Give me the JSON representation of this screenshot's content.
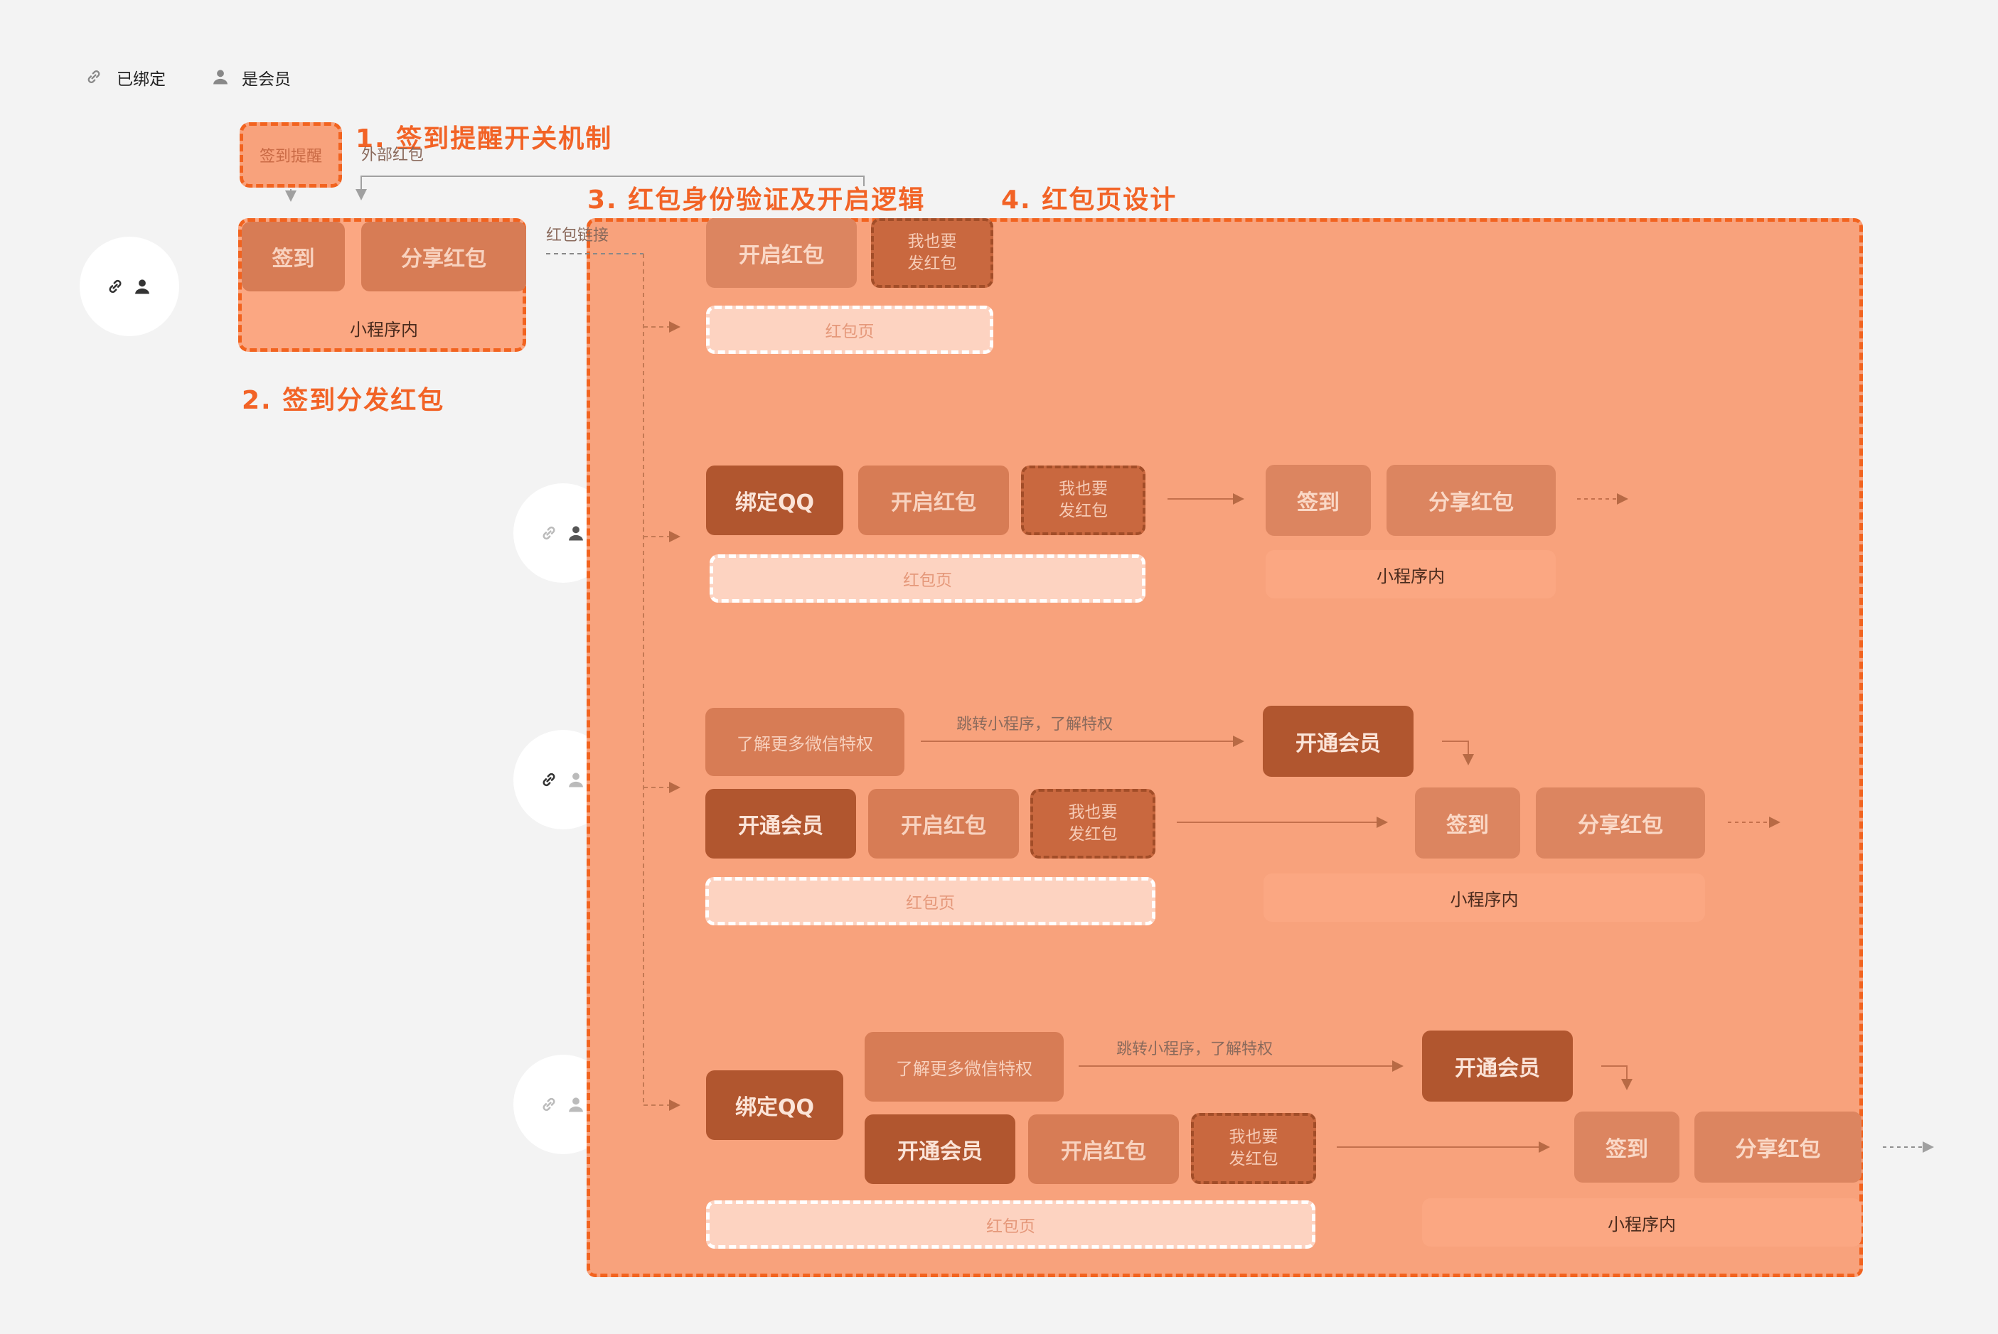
{
  "legend": {
    "bound": "已绑定",
    "member": "是会员"
  },
  "headings": {
    "h1": "1. 签到提醒开关机制",
    "h2": "2. 签到分发红包",
    "h3": "3. 红包身份验证及开启逻辑",
    "h4": "4. 红包页设计"
  },
  "captions": {
    "external": "外部红包",
    "link": "红包链接"
  },
  "checkin_reminder": "签到提醒",
  "miniapp": {
    "checkin": "签到",
    "share": "分享红包",
    "inside": "小程序内"
  },
  "redpack": {
    "open": "开启红包",
    "me_too_line1": "我也要",
    "me_too_line2": "发红包",
    "page": "红包页",
    "bind_qq": "绑定QQ",
    "open_member": "开通会员",
    "learn_more": "了解更多微信特权",
    "jump": "跳转小程序，了解特权"
  },
  "icons": [
    "link-icon",
    "person-icon",
    "arrow-icon"
  ],
  "colors": {
    "accent": "#f26326",
    "frame_fill": "#f8a27c",
    "dark_button": "#b1562f",
    "mid_button": "#d77c55",
    "page_fill": "#fdd3c1",
    "background": "#f3f3f3"
  }
}
